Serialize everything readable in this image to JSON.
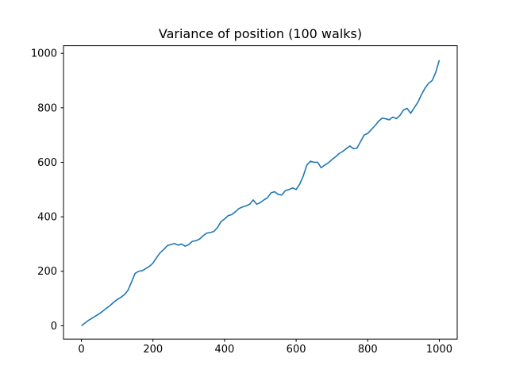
{
  "chart_data": {
    "type": "line",
    "title": "Variance of position (100 walks)",
    "xlabel": "",
    "ylabel": "",
    "xlim": [
      -50,
      1050
    ],
    "ylim": [
      -49,
      1028
    ],
    "xticks": [
      0,
      200,
      400,
      600,
      800,
      1000
    ],
    "yticks": [
      0,
      200,
      400,
      600,
      800,
      1000
    ],
    "grid": false,
    "series": [
      {
        "color": "#1f77b4",
        "x": [
          0,
          10,
          20,
          30,
          40,
          50,
          60,
          70,
          80,
          90,
          100,
          110,
          120,
          130,
          140,
          150,
          160,
          170,
          180,
          190,
          200,
          210,
          220,
          230,
          240,
          250,
          260,
          270,
          280,
          290,
          300,
          310,
          320,
          330,
          340,
          350,
          360,
          370,
          380,
          390,
          400,
          410,
          420,
          430,
          440,
          450,
          460,
          470,
          480,
          490,
          500,
          510,
          520,
          530,
          540,
          550,
          560,
          570,
          580,
          590,
          600,
          610,
          620,
          630,
          640,
          650,
          660,
          670,
          680,
          690,
          700,
          710,
          720,
          730,
          740,
          750,
          760,
          770,
          780,
          790,
          800,
          810,
          820,
          830,
          840,
          850,
          860,
          870,
          880,
          890,
          900,
          910,
          920,
          930,
          940,
          950,
          960,
          970,
          980,
          990,
          1000
        ],
        "y": [
          0,
          10,
          20,
          28,
          36,
          44,
          54,
          64,
          74,
          86,
          96,
          104,
          114,
          130,
          160,
          192,
          200,
          202,
          210,
          218,
          230,
          250,
          268,
          280,
          294,
          298,
          302,
          296,
          300,
          292,
          298,
          310,
          312,
          318,
          330,
          340,
          342,
          346,
          360,
          382,
          392,
          404,
          408,
          418,
          430,
          436,
          440,
          446,
          462,
          446,
          452,
          462,
          470,
          488,
          492,
          482,
          480,
          496,
          500,
          506,
          500,
          520,
          550,
          590,
          604,
          600,
          600,
          580,
          590,
          598,
          610,
          620,
          632,
          640,
          650,
          660,
          650,
          652,
          676,
          700,
          706,
          720,
          734,
          750,
          762,
          760,
          756,
          766,
          760,
          772,
          792,
          798,
          780,
          800,
          820,
          848,
          872,
          890,
          900,
          930,
          975
        ]
      }
    ]
  }
}
